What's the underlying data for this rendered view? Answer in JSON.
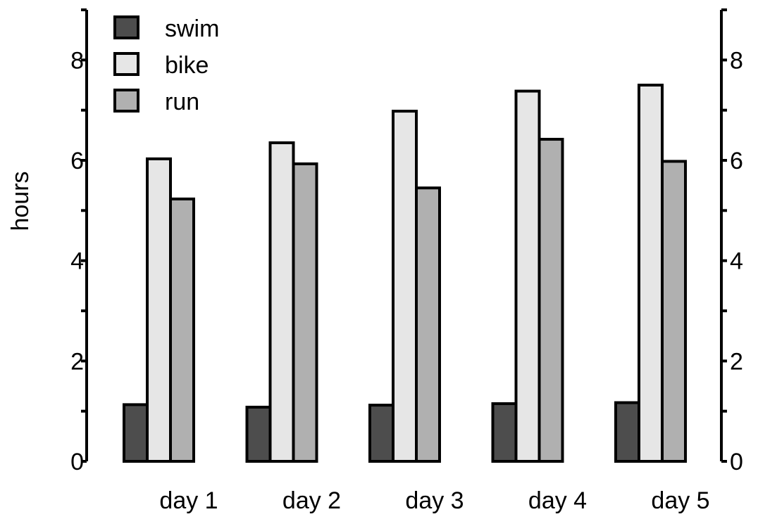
{
  "chart_data": {
    "type": "bar",
    "title": "",
    "xlabel": "",
    "ylabel": "hours",
    "ylim": [
      0,
      9
    ],
    "y_ticks": [
      0,
      2,
      4,
      6,
      8
    ],
    "y_tick_labels": [
      "0",
      "2",
      "4",
      "6",
      "8"
    ],
    "y_minor_step": 1,
    "secondary_y_axis": true,
    "grid": false,
    "legend_position": "top-left",
    "categories": [
      "day 1",
      "day 2",
      "day 3",
      "day 4",
      "day 5"
    ],
    "series": [
      {
        "name": "swim",
        "color": "#4d4d4d",
        "values": [
          1.13,
          1.08,
          1.12,
          1.15,
          1.17
        ]
      },
      {
        "name": "bike",
        "color": "#e6e6e6",
        "values": [
          6.03,
          6.35,
          6.98,
          7.38,
          7.5
        ]
      },
      {
        "name": "run",
        "color": "#b0b0b0",
        "values": [
          5.23,
          5.93,
          5.45,
          6.42,
          5.98
        ]
      }
    ]
  }
}
